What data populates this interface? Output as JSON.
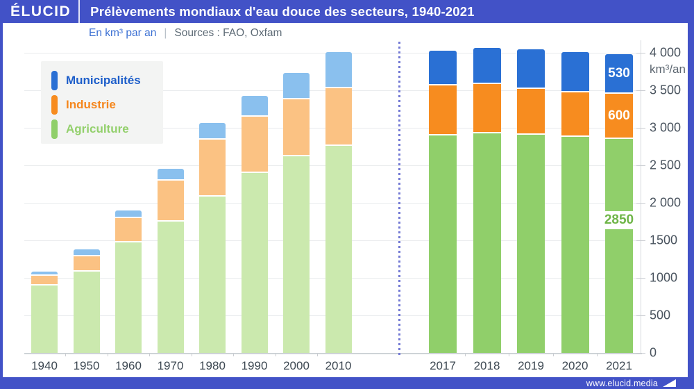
{
  "header": {
    "logo": "ÉLUCID",
    "title": "Prélèvements mondiaux d'eau douce des secteurs, 1940-2021"
  },
  "subtitle": {
    "unit_label": "En km³ par an",
    "separator": "|",
    "sources": "Sources : FAO, Oxfam"
  },
  "legend": {
    "items": [
      {
        "label": "Municipalités",
        "color": "#2a70d4"
      },
      {
        "label": "Industrie",
        "color": "#f78c1f"
      },
      {
        "label": "Agriculture",
        "color": "#90cf6a"
      }
    ]
  },
  "footer": {
    "url": "www.elucid.media",
    "arrow_icon": "elucid-arrow"
  },
  "colors": {
    "header_blue": "#4252c7",
    "divider_dotted": "#7379d4",
    "value_label_green": "#6fb548"
  },
  "chart_data": {
    "type": "bar",
    "stacked": true,
    "title": "Prélèvements mondiaux d'eau douce des secteurs, 1940-2021",
    "unit": "km³/an",
    "ylim": [
      0,
      4000
    ],
    "ytick_step": 500,
    "ytick_labels": [
      "0",
      "500",
      "1000",
      "1500",
      "2 000",
      "2 500",
      "3 000",
      "3 500",
      "4 000"
    ],
    "grid": true,
    "legend_position": "top-left",
    "series_names": {
      "municipalites": "Municipalités",
      "industrie": "Industrie",
      "agriculture": "Agriculture"
    },
    "colors": {
      "pastel": {
        "municipalites": "#8ac0ee",
        "industrie": "#fbc283",
        "agriculture": "#cbe9ae"
      },
      "saturated": {
        "municipalites": "#2a70d4",
        "industrie": "#f78c1f",
        "agriculture": "#90cf6a"
      }
    },
    "groups": [
      {
        "name": "1940-2010",
        "style": "pastel",
        "bars": [
          {
            "year": "1940",
            "agriculture": 900,
            "industrie": 130,
            "municipalites": 55
          },
          {
            "year": "1950",
            "agriculture": 1080,
            "industrie": 210,
            "municipalites": 90
          },
          {
            "year": "1960",
            "agriculture": 1470,
            "industrie": 330,
            "municipalites": 100
          },
          {
            "year": "1970",
            "agriculture": 1750,
            "industrie": 550,
            "municipalites": 150
          },
          {
            "year": "1980",
            "agriculture": 2080,
            "industrie": 760,
            "municipalites": 225
          },
          {
            "year": "1990",
            "agriculture": 2400,
            "industrie": 750,
            "municipalites": 280
          },
          {
            "year": "2000",
            "agriculture": 2620,
            "industrie": 760,
            "municipalites": 350
          },
          {
            "year": "2010",
            "agriculture": 2760,
            "industrie": 770,
            "municipalites": 480
          }
        ]
      },
      {
        "name": "2017-2021",
        "style": "saturated",
        "bars": [
          {
            "year": "2017",
            "agriculture": 2900,
            "industrie": 665,
            "municipalites": 465
          },
          {
            "year": "2018",
            "agriculture": 2930,
            "industrie": 655,
            "municipalites": 480
          },
          {
            "year": "2019",
            "agriculture": 2905,
            "industrie": 610,
            "municipalites": 530
          },
          {
            "year": "2020",
            "agriculture": 2875,
            "industrie": 600,
            "municipalites": 535
          },
          {
            "year": "2021",
            "agriculture": 2850,
            "industrie": 600,
            "municipalites": 530,
            "labels": {
              "municipalites": "530",
              "industrie": "600",
              "agriculture": "2850"
            }
          }
        ]
      }
    ]
  }
}
